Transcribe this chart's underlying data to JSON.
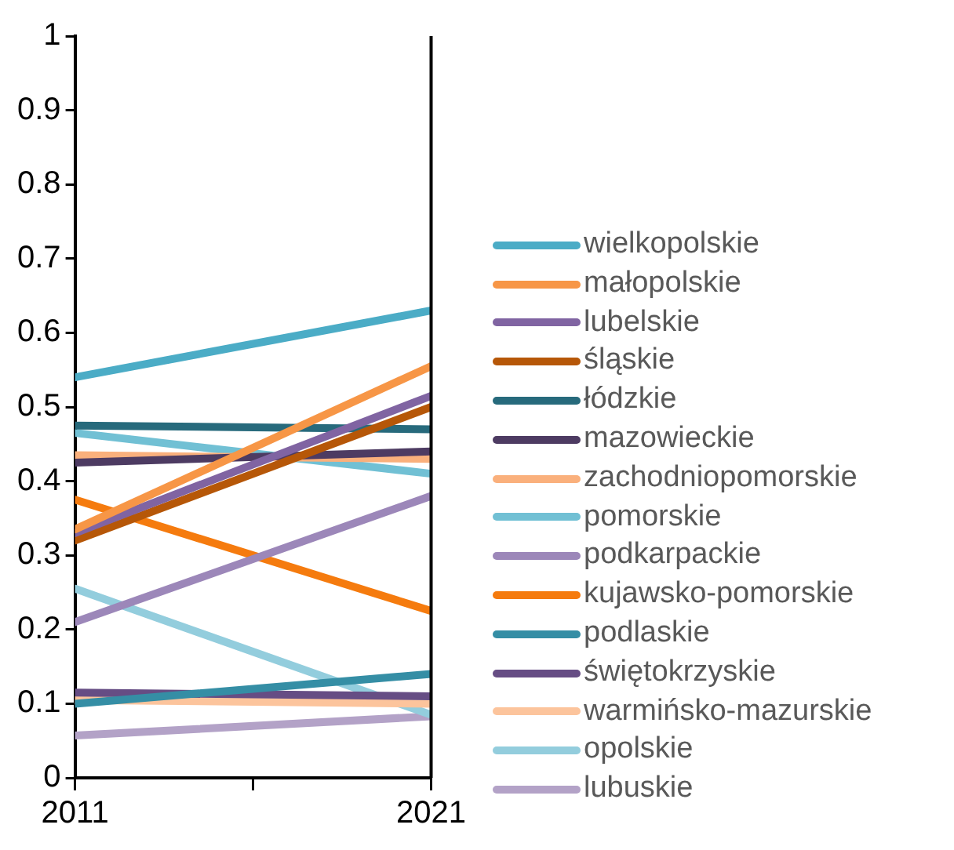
{
  "chart_data": {
    "type": "line",
    "x": [
      2011,
      2021
    ],
    "xlim": [
      2011,
      2021
    ],
    "xticks": [
      2011,
      {
        "value": 2016,
        "label": null
      },
      2021
    ],
    "ylim": [
      0,
      1
    ],
    "yticks": [
      0,
      0.1,
      0.2,
      0.3,
      0.4,
      0.5,
      0.6,
      0.7,
      0.8,
      0.9,
      1
    ],
    "grid": false,
    "legend": "right",
    "marker": "none",
    "line_style": "solid",
    "series": [
      {
        "name": "wielkopolskie",
        "color": "#4bacc6",
        "values": [
          0.54,
          0.63
        ]
      },
      {
        "name": "małopolskie",
        "color": "#f79646",
        "values": [
          0.335,
          0.555
        ]
      },
      {
        "name": "lubelskie",
        "color": "#8064a2",
        "values": [
          0.33,
          0.515
        ]
      },
      {
        "name": "śląskie",
        "color": "#b65708",
        "values": [
          0.32,
          0.5
        ]
      },
      {
        "name": "łódzkie",
        "color": "#276a7c",
        "values": [
          0.475,
          0.47
        ]
      },
      {
        "name": "mazowieckie",
        "color": "#4d3b62",
        "values": [
          0.425,
          0.44
        ]
      },
      {
        "name": "zachodniopomorskie",
        "color": "#fab07c",
        "values": [
          0.435,
          0.43
        ]
      },
      {
        "name": "pomorskie",
        "color": "#71c0d4",
        "values": [
          0.465,
          0.41
        ]
      },
      {
        "name": "podkarpackie",
        "color": "#9c87b9",
        "values": [
          0.21,
          0.38
        ]
      },
      {
        "name": "kujawsko-pomorskie",
        "color": "#f57b0e",
        "values": [
          0.375,
          0.225
        ]
      },
      {
        "name": "podlaskie",
        "color": "#358ea5",
        "values": [
          0.1,
          0.14
        ]
      },
      {
        "name": "świętokrzyskie",
        "color": "#664d84",
        "values": [
          0.115,
          0.11
        ]
      },
      {
        "name": "warmińsko-mazurskie",
        "color": "#fcc49c",
        "values": [
          0.105,
          0.1
        ]
      },
      {
        "name": "opolskie",
        "color": "#93cddd",
        "values": [
          0.255,
          0.085
        ]
      },
      {
        "name": "lubuskie",
        "color": "#b3a2c7",
        "values": [
          0.057,
          0.083
        ]
      }
    ]
  }
}
